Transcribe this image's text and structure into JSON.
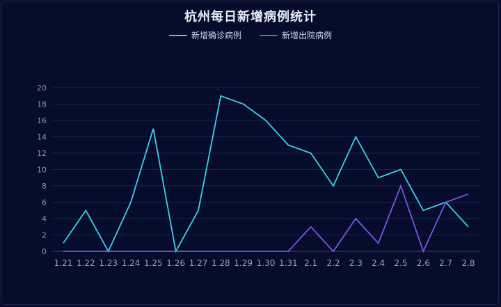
{
  "chart_data": {
    "type": "line",
    "title": "杭州每日新增病例统计",
    "categories": [
      "1.21",
      "1.22",
      "1.23",
      "1.24",
      "1.25",
      "1.26",
      "1.27",
      "1.28",
      "1.29",
      "1.30",
      "1.31",
      "2.1",
      "2.2",
      "2.3",
      "2.4",
      "2.5",
      "2.6",
      "2.7",
      "2.8"
    ],
    "series": [
      {
        "name": "新增确诊病例",
        "color": "#3fd0e4",
        "values": [
          1,
          5,
          0,
          6,
          15,
          0,
          5,
          19,
          18,
          16,
          13,
          12,
          8,
          14,
          9,
          10,
          5,
          6,
          3
        ]
      },
      {
        "name": "新增出院病例",
        "color": "#7b55e8",
        "values": [
          0,
          0,
          0,
          0,
          0,
          0,
          0,
          0,
          0,
          0,
          0,
          3,
          0,
          4,
          1,
          8,
          0,
          6,
          7
        ]
      }
    ],
    "ylim": [
      0,
      20
    ],
    "yticks": [
      0,
      2,
      4,
      6,
      8,
      10,
      12,
      14,
      16,
      18,
      20
    ],
    "grid": true,
    "legend_position": "top-center"
  }
}
